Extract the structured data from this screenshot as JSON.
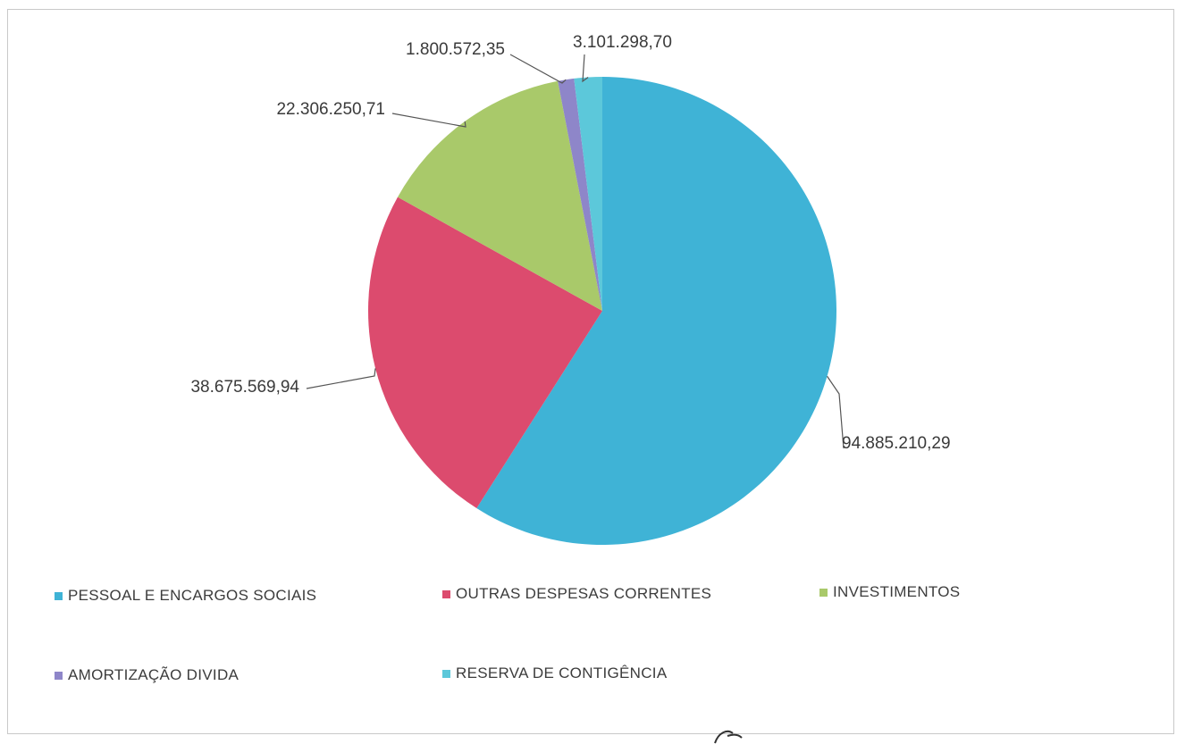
{
  "chart_data": {
    "type": "pie",
    "slices": [
      {
        "label": "PESSOAL E ENCARGOS SOCIAIS",
        "value": 94885210.29,
        "display": "94.885.210,29",
        "color": "#3fb3d6"
      },
      {
        "label": "OUTRAS DESPESAS CORRENTES",
        "value": 38675569.94,
        "display": "38.675.569,94",
        "color": "#dc4b6e"
      },
      {
        "label": "INVESTIMENTOS",
        "value": 22306250.71,
        "display": "22.306.250,71",
        "color": "#a9c96a"
      },
      {
        "label": "AMORTIZAÇÃO DIVIDA",
        "value": 1800572.35,
        "display": "1.800.572,35",
        "color": "#8e86c9"
      },
      {
        "label": "RESERVA DE CONTIGÊNCIA",
        "value": 3101298.7,
        "display": "3.101.298,70",
        "color": "#5cc8da"
      }
    ],
    "start_angle_deg": 0,
    "direction": "clockwise",
    "legend_position": "bottom"
  }
}
